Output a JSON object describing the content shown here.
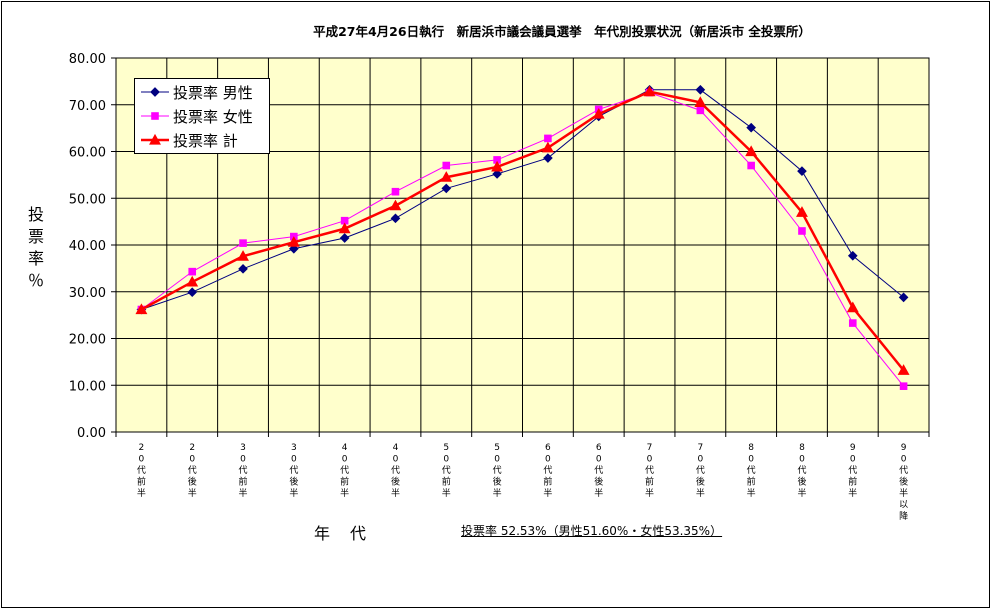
{
  "chart_data": {
    "type": "line",
    "title": "平成27年4月26日執行　新居浜市議会議員選挙　年代別投票状況（新居浜市 全投票所）",
    "ylabel": "投票率％",
    "xlabel": "年　代",
    "ylim": [
      0,
      80
    ],
    "ytick_step": 10,
    "yticks": [
      "0.00",
      "10.00",
      "20.00",
      "30.00",
      "40.00",
      "50.00",
      "60.00",
      "70.00",
      "80.00"
    ],
    "grid": true,
    "legend_position": "top-left",
    "categories": [
      "20代前半",
      "20代後半",
      "30代前半",
      "30代後半",
      "40代前半",
      "40代後半",
      "50代前半",
      "50代後半",
      "60代前半",
      "60代後半",
      "70代前半",
      "70代後半",
      "80代前半",
      "80代後半",
      "90代前半",
      "90代後半以降"
    ],
    "series": [
      {
        "name": "投票率 男性",
        "color": "#000080",
        "marker": "diamond",
        "values": [
          26.2,
          29.9,
          34.9,
          39.2,
          41.5,
          45.7,
          52.1,
          55.2,
          58.6,
          67.5,
          73.2,
          73.2,
          65.1,
          55.8,
          37.7,
          28.8
        ]
      },
      {
        "name": "投票率 女性",
        "color": "#ff00ff",
        "marker": "square",
        "values": [
          26.2,
          34.3,
          40.4,
          41.8,
          45.2,
          51.4,
          57.0,
          58.2,
          62.8,
          69.0,
          72.6,
          68.8,
          57.0,
          43.0,
          23.3,
          9.8
        ]
      },
      {
        "name": "投票率 計",
        "color": "#ff0000",
        "marker": "triangle",
        "values": [
          26.2,
          32.1,
          37.6,
          40.6,
          43.5,
          48.4,
          54.5,
          56.7,
          60.8,
          68.0,
          72.8,
          70.5,
          60.0,
          47.0,
          26.6,
          13.2
        ]
      }
    ],
    "summary": "投票率 52.53%（男性51.60%・女性53.35%）"
  },
  "colors": {
    "plot_background": "#ffffcc",
    "grid": "#000000"
  }
}
